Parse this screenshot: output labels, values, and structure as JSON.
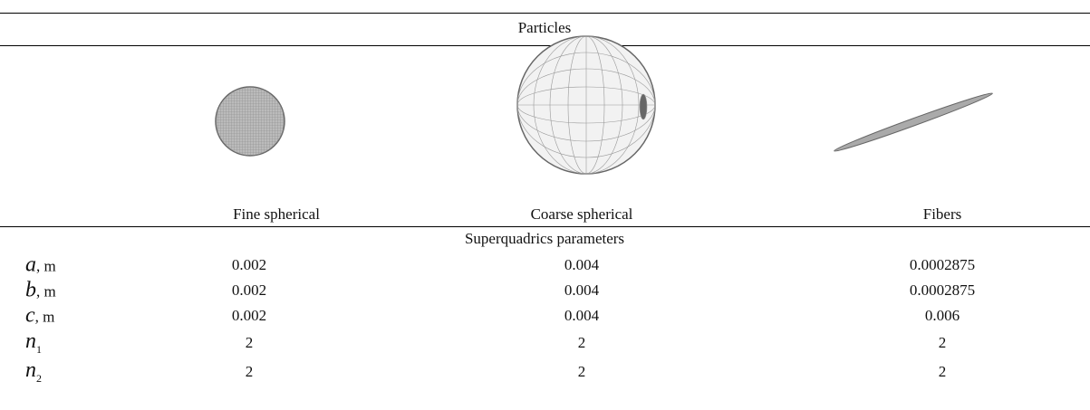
{
  "table": {
    "title": "Particles",
    "columns": [
      "Fine spherical",
      "Coarse spherical",
      "Fibers"
    ],
    "section": "Superquadrics parameters",
    "rows": [
      {
        "symbol": "a",
        "unit": ", m",
        "values": [
          "0.002",
          "0.004",
          "0.0002875"
        ]
      },
      {
        "symbol": "b",
        "unit": ", m",
        "values": [
          "0.002",
          "0.004",
          "0.0002875"
        ]
      },
      {
        "symbol": "c",
        "unit": ", m",
        "values": [
          "0.002",
          "0.004",
          "0.006"
        ]
      },
      {
        "symbol": "n",
        "sub": "1",
        "values": [
          "2",
          "2",
          "2"
        ]
      },
      {
        "symbol": "n",
        "sub": "2",
        "values": [
          "2",
          "2",
          "2"
        ]
      }
    ]
  }
}
